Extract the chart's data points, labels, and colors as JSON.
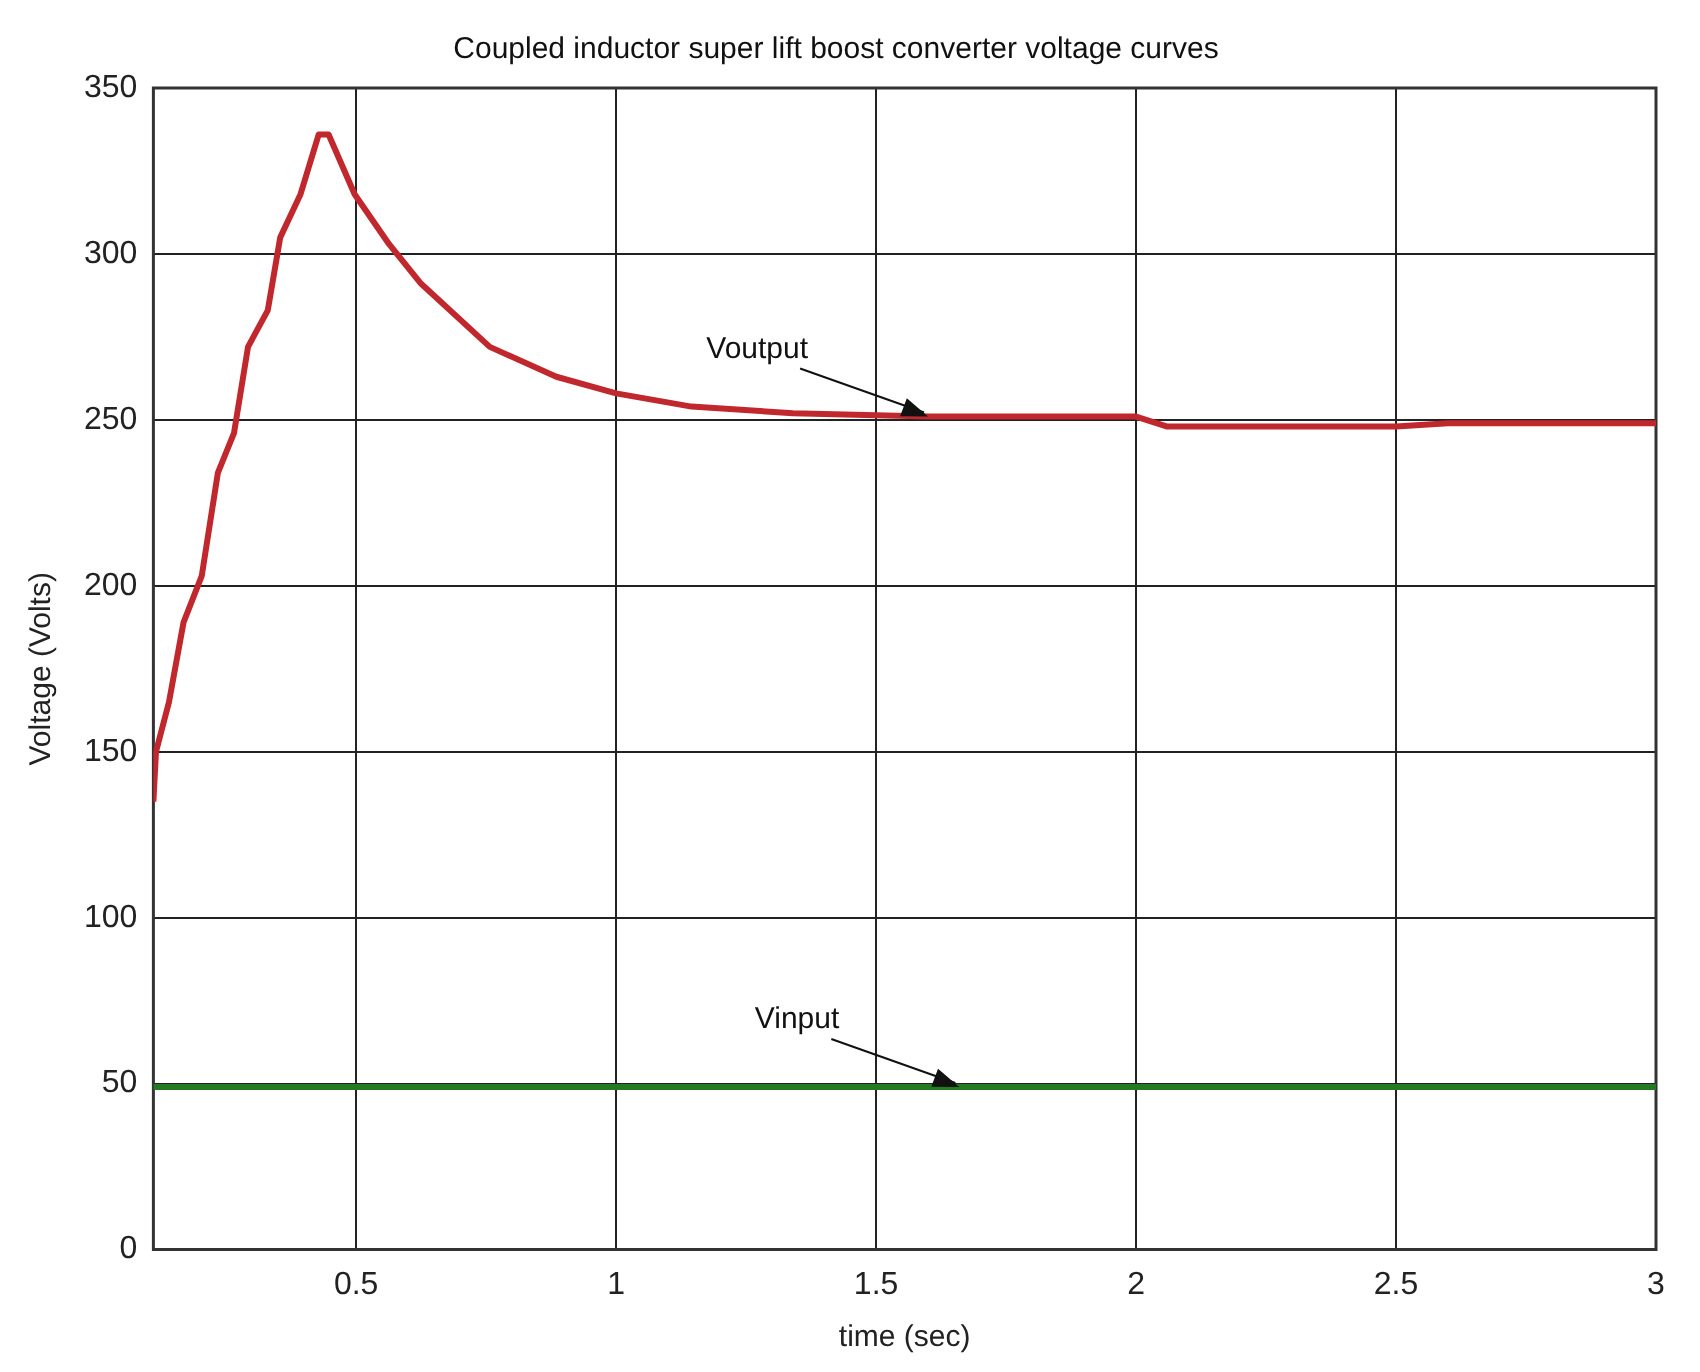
{
  "chart_data": {
    "type": "line",
    "title": "Coupled inductor super lift boost converter voltage curves",
    "xlabel": "time (sec)",
    "ylabel": "Voltage (Volts)",
    "xlim": [
      0.11,
      3
    ],
    "xticks": [
      0.5,
      1,
      1.5,
      2,
      2.5,
      3
    ],
    "ylim": [
      0,
      350
    ],
    "yticks": [
      0,
      50,
      100,
      150,
      200,
      250,
      300,
      350
    ],
    "grid": true,
    "legend": false,
    "marker": "none",
    "line_style": "solid",
    "series": [
      {
        "color": "#c0282e",
        "x": [
          0.11,
          0.115,
          0.14,
          0.168,
          0.203,
          0.234,
          0.265,
          0.292,
          0.33,
          0.354,
          0.393,
          0.428,
          0.447,
          0.497,
          0.563,
          0.625,
          0.757,
          0.885,
          1.0,
          1.145,
          1.34,
          1.6,
          2.0,
          2.06,
          2.3,
          2.5,
          2.6,
          3.0
        ],
        "values": [
          135,
          150,
          165,
          189,
          203,
          234,
          246,
          272,
          283,
          305,
          318,
          336,
          336,
          318,
          303,
          291,
          272,
          263,
          258,
          254,
          252,
          251,
          251,
          248,
          248,
          248,
          249,
          249
        ]
      },
      {
        "color": "#237a23",
        "x": [
          0.11,
          0.5,
          1.0,
          1.5,
          2.0,
          2.5,
          3.0
        ],
        "values": [
          49,
          49,
          49,
          49,
          49,
          49,
          49
        ]
      }
    ],
    "annotations": [
      {
        "text": "Voutput",
        "x": 1.6,
        "y": 251
      },
      {
        "text": "Vinput",
        "x": 1.66,
        "y": 49
      }
    ]
  }
}
